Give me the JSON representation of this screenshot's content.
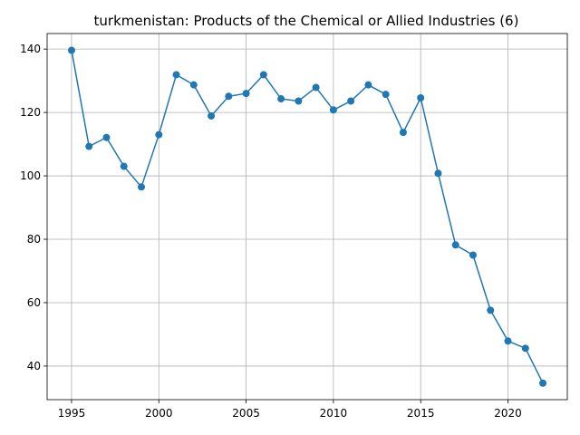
{
  "chart_data": {
    "type": "line",
    "title": "turkmenistan: Products of the Chemical or Allied Industries (6)",
    "xlabel": "",
    "ylabel": "",
    "xlim": [
      1993.6,
      2023.4
    ],
    "ylim": [
      29.4,
      144.9
    ],
    "xticks": [
      1995,
      2000,
      2005,
      2010,
      2015,
      2020
    ],
    "yticks": [
      40,
      60,
      80,
      100,
      120,
      140
    ],
    "grid": true,
    "color": "#1f77b4",
    "series": [
      {
        "x": [
          1995,
          1996,
          1997,
          1998,
          1999,
          2000,
          2001,
          2002,
          2003,
          2004,
          2005,
          2006,
          2007,
          2008,
          2009,
          2010,
          2011,
          2012,
          2013,
          2014,
          2015,
          2016,
          2017,
          2018,
          2019,
          2020,
          2021,
          2022
        ],
        "values": [
          139.6,
          109.3,
          112.1,
          103.0,
          96.5,
          113.0,
          131.9,
          128.7,
          118.9,
          125.1,
          126.0,
          131.9,
          124.3,
          123.6,
          127.9,
          120.8,
          123.6,
          128.7,
          125.7,
          113.7,
          124.6,
          100.8,
          78.2,
          75.0,
          57.6,
          47.9,
          45.6,
          34.6
        ]
      }
    ]
  }
}
